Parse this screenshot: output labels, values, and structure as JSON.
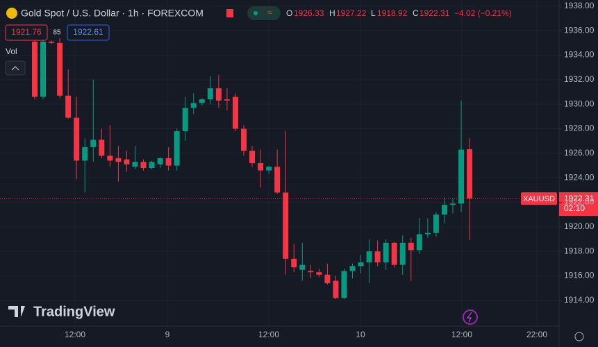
{
  "chart_data": {
    "type": "candlestick",
    "title": "Gold Spot / U.S. Dollar · 1h · FOREXCOM",
    "ohlc_header": {
      "o_label": "O",
      "open": 1926.33,
      "h_label": "H",
      "high": 1927.22,
      "l_label": "L",
      "low": 1918.92,
      "c_label": "C",
      "close": 1922.31,
      "change": "−4.02 (−0.21%)"
    },
    "sell": 1921.76,
    "spread": 85,
    "buy": 1922.61,
    "volume_label": "Vol",
    "symbol": "XAUUSD",
    "last_price": 1922.31,
    "countdown": "02:10",
    "watermark": "TradingView",
    "up_color": "#089981",
    "down_color": "#f23645",
    "open": [
      1935.1,
      1930.6,
      1935.1,
      1935.0,
      1930.7,
      1928.9,
      1925.4,
      1926.5,
      1927.1,
      1925.8,
      1925.6,
      1925.5,
      1924.9,
      1925.3,
      1924.8,
      1925.1,
      1925.6,
      1925.0,
      1927.8,
      1929.7,
      1930.1,
      1930.4,
      1931.3,
      1930.4,
      1930.6,
      1928.0,
      1926.2,
      1925.2,
      1924.6,
      1924.9,
      1922.8,
      1917.4,
      1916.5,
      1916.4,
      1916.3,
      1916.1,
      1915.6,
      1914.2,
      1916.4,
      1916.8,
      1917.1,
      1918.0,
      1917.1,
      1918.7,
      1916.9,
      1918.7,
      1918.1,
      1919.4,
      1919.5,
      1921.0,
      1921.8,
      1921.9,
      1926.33
    ],
    "high": [
      1935.4,
      1935.3,
      1935.2,
      1935.4,
      1932.85,
      1930.6,
      1927.2,
      1932.0,
      1928.0,
      1928.3,
      1926.6,
      1926.2,
      1926.6,
      1925.5,
      1925.4,
      1925.7,
      1926.5,
      1928.0,
      1930.6,
      1930.9,
      1930.5,
      1932.3,
      1932.4,
      1931.3,
      1930.9,
      1928.3,
      1926.6,
      1926.3,
      1925.0,
      1926.3,
      1927.8,
      1918.6,
      1918.7,
      1916.9,
      1916.6,
      1917.0,
      1916.0,
      1916.6,
      1917.0,
      1917.7,
      1919.0,
      1918.9,
      1919.0,
      1918.8,
      1919.3,
      1919.1,
      1920.7,
      1920.7,
      1921.2,
      1922.4,
      1922.3,
      1930.3,
      1927.22
    ],
    "low": [
      1930.4,
      1930.4,
      1934.9,
      1930.5,
      1928.8,
      1923.9,
      1922.8,
      1925.3,
      1925.6,
      1924.9,
      1923.7,
      1924.5,
      1924.7,
      1924.6,
      1924.7,
      1924.8,
      1924.6,
      1924.6,
      1927.0,
      1929.2,
      1929.9,
      1930.0,
      1929.7,
      1929.5,
      1927.8,
      1925.8,
      1924.9,
      1923.2,
      1924.3,
      1922.7,
      1916.1,
      1916.3,
      1915.6,
      1915.8,
      1915.9,
      1915.3,
      1914.1,
      1914.1,
      1915.8,
      1916.2,
      1915.4,
      1916.8,
      1916.5,
      1916.7,
      1916.1,
      1915.6,
      1917.8,
      1919.1,
      1919.2,
      1920.3,
      1921.1,
      1921.2,
      1918.92
    ],
    "close": [
      1930.6,
      1935.1,
      1935.0,
      1930.7,
      1928.9,
      1925.4,
      1926.5,
      1927.1,
      1925.8,
      1925.4,
      1925.3,
      1925.1,
      1925.3,
      1924.8,
      1925.3,
      1925.6,
      1925.0,
      1927.8,
      1929.7,
      1930.1,
      1930.4,
      1931.3,
      1930.3,
      1930.3,
      1928.0,
      1926.2,
      1925.2,
      1924.6,
      1924.9,
      1922.8,
      1917.4,
      1916.7,
      1916.9,
      1916.3,
      1916.1,
      1915.4,
      1914.2,
      1916.4,
      1916.8,
      1917.1,
      1918.0,
      1917.1,
      1918.7,
      1916.9,
      1918.7,
      1918.1,
      1919.4,
      1919.5,
      1921.0,
      1921.8,
      1921.9,
      1926.3,
      1922.31
    ],
    "time_labels": [
      "12:00",
      "9",
      "12:00",
      "10",
      "12:00",
      "22:00"
    ],
    "ylim": [
      1911.9,
      1938.5
    ],
    "yticks": [
      {
        "value": 1914,
        "label": "1914.00"
      },
      {
        "value": 1916,
        "label": "1916.00"
      },
      {
        "value": 1918,
        "label": "1918.00"
      },
      {
        "value": 1920,
        "label": "1920.00"
      },
      {
        "value": 1922,
        "label": "1922.00"
      },
      {
        "value": 1924,
        "label": "1924.00"
      },
      {
        "value": 1926,
        "label": "1926.00"
      },
      {
        "value": 1928,
        "label": "1928.00"
      },
      {
        "value": 1930,
        "label": "1930.00"
      },
      {
        "value": 1932,
        "label": "1932.00"
      },
      {
        "value": 1934,
        "label": "1934.00"
      },
      {
        "value": 1936,
        "label": "1936.00"
      },
      {
        "value": 1938,
        "label": "1938.00"
      }
    ],
    "grid": true
  }
}
